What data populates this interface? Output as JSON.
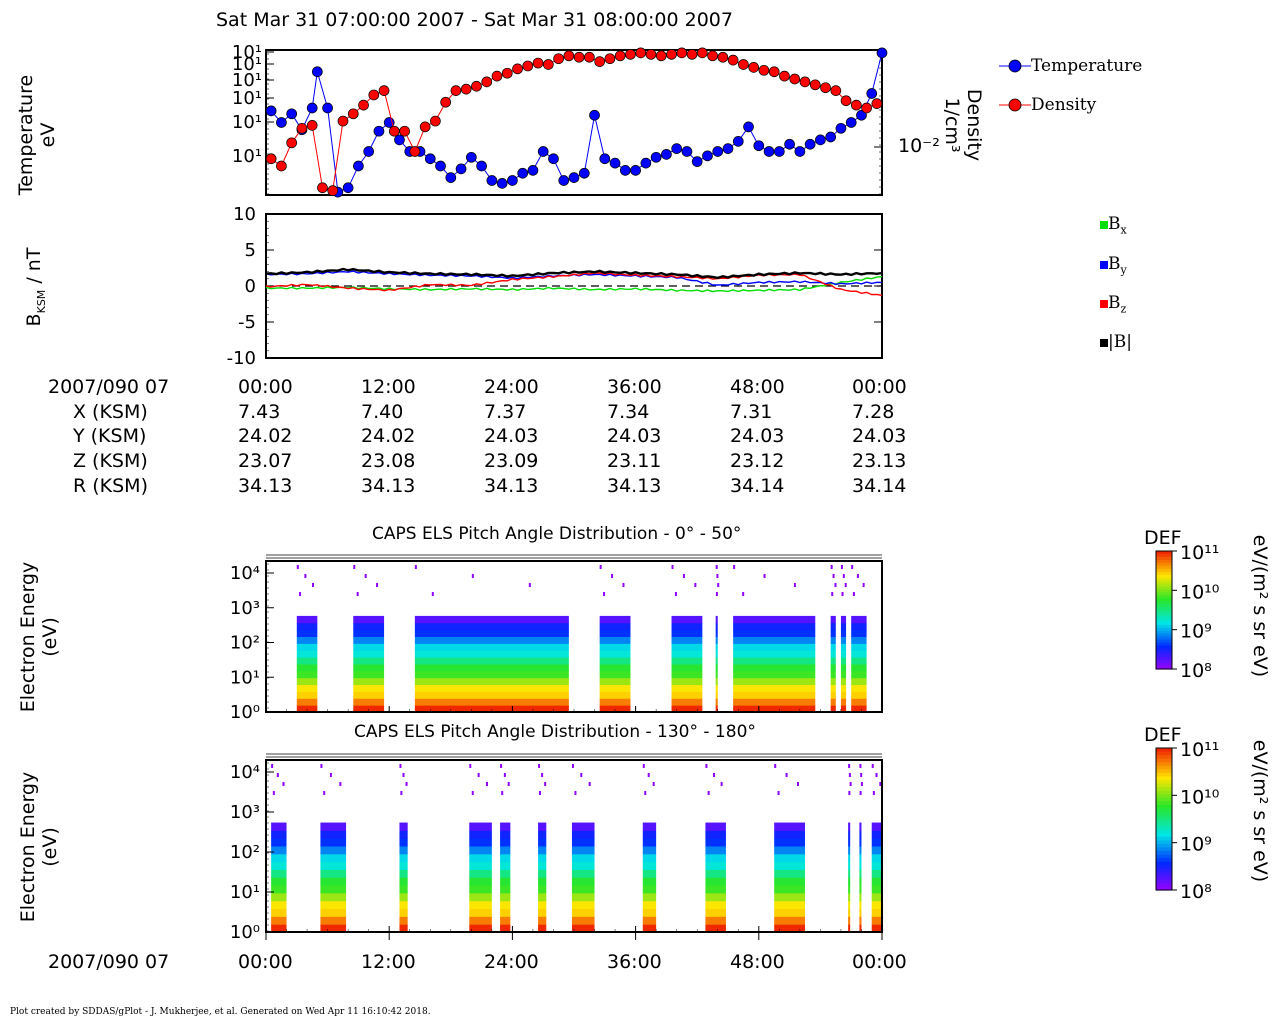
{
  "title": "Sat Mar 31 07:00:00 2007 - Sat Mar 31 08:00:00 2007",
  "footer": "Plot created by SDDAS/gPlot - J. Mukherjee, et al.  Generated on Wed Apr 11 16:10:42 2018.",
  "colors": {
    "temperature": "#0000ff",
    "density": "#ff0000",
    "bx": "#00dd00",
    "by": "#0000ff",
    "bz": "#ff0000",
    "bmag": "#000000"
  },
  "orbit_table": {
    "date_label": "2007/090 07",
    "time_ticks": [
      "00:00",
      "12:00",
      "24:00",
      "36:00",
      "48:00",
      "00:00"
    ],
    "rows": [
      {
        "label": "X (KSM)",
        "values": [
          "7.43",
          "7.40",
          "7.37",
          "7.34",
          "7.31",
          "7.28"
        ]
      },
      {
        "label": "Y (KSM)",
        "values": [
          "24.02",
          "24.02",
          "24.03",
          "24.03",
          "24.03",
          "24.03"
        ]
      },
      {
        "label": "Z (KSM)",
        "values": [
          "23.07",
          "23.08",
          "23.09",
          "23.11",
          "23.12",
          "23.13"
        ]
      },
      {
        "label": "R (KSM)",
        "values": [
          "34.13",
          "34.13",
          "34.13",
          "34.13",
          "34.14",
          "34.14"
        ]
      }
    ]
  },
  "bottom_axis": {
    "date_label": "2007/090 07",
    "time_ticks": [
      "00:00",
      "12:00",
      "24:00",
      "36:00",
      "48:00",
      "00:00"
    ]
  },
  "chart_data": [
    {
      "type": "line",
      "ylabel_line1": "Temperature",
      "ylabel_line2": "eV",
      "y2label_line1": "Density",
      "y2label_line2": "1/cm³",
      "y2_tick": "10⁻²",
      "yticks": [
        "10¹",
        "10¹",
        "10¹",
        "10¹",
        "10¹",
        "10¹"
      ],
      "legend": [
        "Temperature",
        "Density"
      ],
      "x_range_min": [
        0,
        60
      ],
      "series": [
        {
          "name": "Temperature",
          "x": [
            0.5,
            1.5,
            2.5,
            3.5,
            4.5,
            5.0,
            6.0,
            7.0,
            8.0,
            9.0,
            10.0,
            11.0,
            12.0,
            13.0,
            14.0,
            15.0,
            16.0,
            17.0,
            18.0,
            19.0,
            20.0,
            21.0,
            22.0,
            23.0,
            24.0,
            25.0,
            26.0,
            27.0,
            28.0,
            29.0,
            30.0,
            31.0,
            32.0,
            33.0,
            34.0,
            35.0,
            36.0,
            37.0,
            38.0,
            39.0,
            40.0,
            41.0,
            42.0,
            43.0,
            44.0,
            45.0,
            46.0,
            47.0,
            48.0,
            49.0,
            50.0,
            51.0,
            52.0,
            53.0,
            54.0,
            55.0,
            56.0,
            57.0,
            58.0,
            59.0,
            60.0
          ],
          "values": [
            0.58,
            0.5,
            0.56,
            0.45,
            0.6,
            0.85,
            0.6,
            0.02,
            0.05,
            0.2,
            0.3,
            0.44,
            0.5,
            0.38,
            0.3,
            0.3,
            0.25,
            0.2,
            0.12,
            0.18,
            0.26,
            0.2,
            0.1,
            0.08,
            0.1,
            0.15,
            0.17,
            0.3,
            0.25,
            0.1,
            0.12,
            0.15,
            0.55,
            0.25,
            0.22,
            0.17,
            0.17,
            0.22,
            0.26,
            0.28,
            0.32,
            0.3,
            0.23,
            0.27,
            0.3,
            0.32,
            0.37,
            0.47,
            0.34,
            0.3,
            0.3,
            0.35,
            0.3,
            0.35,
            0.38,
            0.4,
            0.46,
            0.5,
            0.55,
            0.7,
            0.98
          ]
        },
        {
          "name": "Density",
          "x": [
            0.5,
            1.5,
            2.5,
            3.5,
            4.5,
            5.5,
            6.5,
            7.5,
            8.5,
            9.5,
            10.5,
            11.5,
            12.5,
            13.5,
            14.5,
            15.5,
            16.5,
            17.5,
            18.5,
            19.5,
            20.5,
            21.5,
            22.5,
            23.5,
            24.5,
            25.5,
            26.5,
            27.5,
            28.5,
            29.5,
            30.5,
            31.5,
            32.5,
            33.5,
            34.5,
            35.5,
            36.5,
            37.5,
            38.5,
            39.5,
            40.5,
            41.5,
            42.5,
            43.5,
            44.5,
            45.5,
            46.5,
            47.5,
            48.5,
            49.5,
            50.5,
            51.5,
            52.5,
            53.5,
            54.5,
            55.5,
            56.5,
            57.5,
            58.5,
            59.5
          ],
          "values": [
            0.25,
            0.2,
            0.36,
            0.46,
            0.48,
            0.05,
            0.03,
            0.51,
            0.56,
            0.62,
            0.69,
            0.72,
            0.44,
            0.44,
            0.3,
            0.47,
            0.51,
            0.64,
            0.72,
            0.73,
            0.75,
            0.78,
            0.82,
            0.84,
            0.87,
            0.89,
            0.91,
            0.9,
            0.94,
            0.96,
            0.95,
            0.95,
            0.92,
            0.94,
            0.96,
            0.97,
            0.98,
            0.97,
            0.96,
            0.97,
            0.98,
            0.97,
            0.98,
            0.96,
            0.95,
            0.93,
            0.9,
            0.88,
            0.86,
            0.85,
            0.82,
            0.8,
            0.78,
            0.76,
            0.74,
            0.72,
            0.65,
            0.62,
            0.6,
            0.63
          ]
        }
      ]
    },
    {
      "type": "line",
      "ylabel": "B",
      "ylabel_sub": "KSM",
      "ylabel_unit": " / nT",
      "ylim": [
        -10,
        10
      ],
      "yticks": [
        10,
        5,
        0,
        -5,
        -10
      ],
      "legend": [
        "Bx",
        "By",
        "Bz",
        "|B|"
      ],
      "legend_labels": {
        "bx_base": "B",
        "bx_sub": "x",
        "by_base": "B",
        "by_sub": "y",
        "bz_base": "B",
        "bz_sub": "z",
        "bmag": "|B|"
      },
      "x": [
        0,
        4,
        8,
        12,
        16,
        20,
        24,
        28,
        32,
        36,
        40,
        44,
        48,
        52,
        56,
        60
      ],
      "series": [
        {
          "name": "Bx",
          "values": [
            -0.3,
            -0.3,
            -0.2,
            -0.4,
            -0.5,
            -0.4,
            -0.5,
            -0.3,
            -0.5,
            -0.4,
            -0.6,
            -0.7,
            -0.6,
            -0.5,
            0.5,
            1.3
          ]
        },
        {
          "name": "By",
          "values": [
            1.6,
            1.7,
            2.0,
            1.7,
            1.5,
            1.4,
            1.1,
            1.4,
            1.6,
            1.4,
            1.2,
            0.1,
            0.5,
            0.6,
            0.3,
            0.5
          ]
        },
        {
          "name": "Bz",
          "values": [
            -0.1,
            0.2,
            -0.3,
            -0.6,
            0.2,
            0.1,
            0.9,
            1.3,
            1.8,
            1.5,
            1.3,
            1.0,
            1.5,
            1.6,
            -0.5,
            -1.3
          ]
        },
        {
          "name": "|B|",
          "values": [
            1.7,
            1.9,
            2.3,
            1.9,
            1.7,
            1.6,
            1.4,
            1.8,
            2.0,
            1.8,
            1.6,
            1.2,
            1.6,
            1.8,
            1.6,
            1.8
          ]
        }
      ]
    },
    {
      "type": "heatmap",
      "title": "CAPS ELS Pitch Angle Distribution - 0° - 50°",
      "ylabel_line1": "Electron Energy",
      "ylabel_line2": "(eV)",
      "yticks": [
        "10⁴",
        "10³",
        "10²",
        "10¹",
        "10⁰"
      ],
      "colorbar": {
        "title": "DEF",
        "unit": "eV/(m² s sr eV)",
        "ticks": [
          "10¹¹",
          "10¹⁰",
          "10⁹",
          "10⁸"
        ]
      },
      "data_intervals_min": [
        [
          3,
          5
        ],
        [
          8.5,
          11.5
        ],
        [
          14.5,
          29.5
        ],
        [
          32.5,
          35.5
        ],
        [
          39.5,
          42.5
        ],
        [
          43.8,
          44
        ],
        [
          45.5,
          53.5
        ],
        [
          55,
          55.5
        ],
        [
          56,
          56.5
        ],
        [
          57,
          58.5
        ]
      ]
    },
    {
      "type": "heatmap",
      "title": "CAPS ELS Pitch Angle Distribution - 130° - 180°",
      "ylabel_line1": "Electron Energy",
      "ylabel_line2": "(eV)",
      "yticks": [
        "10⁴",
        "10³",
        "10²",
        "10¹",
        "10⁰"
      ],
      "colorbar": {
        "title": "DEF",
        "unit": "eV/(m² s sr eV)",
        "ticks": [
          "10¹¹",
          "10¹⁰",
          "10⁹",
          "10⁸"
        ]
      },
      "data_intervals_min": [
        [
          0.5,
          2
        ],
        [
          5.3,
          7.8
        ],
        [
          13,
          13.8
        ],
        [
          19.8,
          22
        ],
        [
          22.8,
          23.8
        ],
        [
          26.5,
          27.3
        ],
        [
          29.8,
          32
        ],
        [
          36.7,
          38
        ],
        [
          42.8,
          44.8
        ],
        [
          49.5,
          52.5
        ],
        [
          56.7,
          56.9
        ],
        [
          57.8,
          58
        ],
        [
          59,
          60
        ]
      ]
    }
  ]
}
